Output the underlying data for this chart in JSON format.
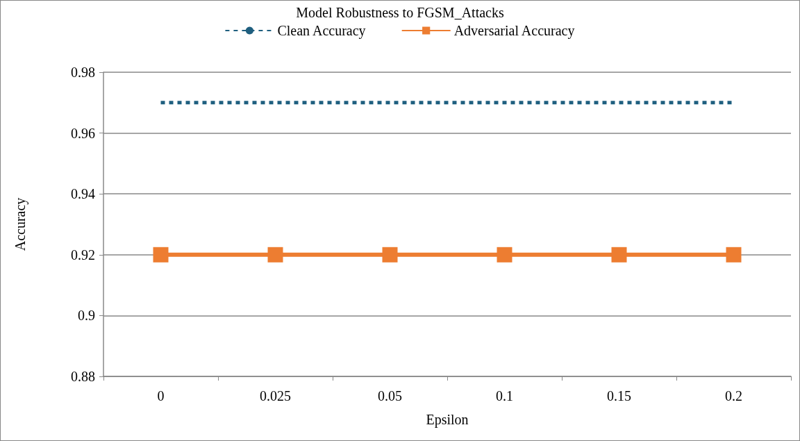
{
  "chart_data": {
    "type": "line",
    "title": "Model Robustness to FGSM_Attacks",
    "xlabel": "Epsilon",
    "ylabel": "Accuracy",
    "categories": [
      "0",
      "0.025",
      "0.05",
      "0.1",
      "0.15",
      "0.2"
    ],
    "series": [
      {
        "name": "Clean Accuracy",
        "color": "#1f5f7f",
        "values": [
          0.97,
          0.97,
          0.97,
          0.97,
          0.97,
          0.97
        ],
        "line_style": "dashed",
        "marker": "none"
      },
      {
        "name": "Adversarial Accuracy",
        "color": "#ed7d31",
        "values": [
          0.92,
          0.92,
          0.92,
          0.92,
          0.92,
          0.92
        ],
        "line_style": "solid",
        "marker": "square"
      }
    ],
    "ylim": [
      0.88,
      0.98
    ],
    "yticks": [
      0.88,
      0.9,
      0.92,
      0.94,
      0.96,
      0.98
    ],
    "grid": "y",
    "legend": "top"
  }
}
